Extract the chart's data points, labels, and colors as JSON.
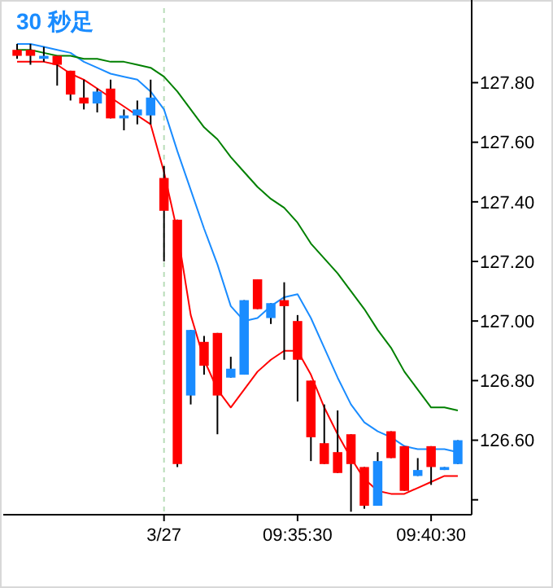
{
  "chart_data": {
    "type": "candlestick",
    "title": "30 秒足",
    "categories": [
      null,
      null,
      null,
      null,
      null,
      null,
      null,
      null,
      null,
      null,
      null,
      "3/27",
      null,
      null,
      null,
      null,
      null,
      null,
      null,
      null,
      null,
      "09:35:30",
      null,
      null,
      null,
      null,
      null,
      null,
      null,
      null,
      null,
      "09:40:30",
      null,
      null
    ],
    "ohlc": [
      [
        127.91,
        127.93,
        127.88,
        127.89
      ],
      [
        127.91,
        127.93,
        127.86,
        127.89
      ],
      [
        127.88,
        127.92,
        127.87,
        127.89
      ],
      [
        127.89,
        127.89,
        127.79,
        127.86
      ],
      [
        127.84,
        127.84,
        127.74,
        127.76
      ],
      [
        127.75,
        127.81,
        127.71,
        127.73
      ],
      [
        127.73,
        127.78,
        127.7,
        127.77
      ],
      [
        127.78,
        127.81,
        127.68,
        127.68
      ],
      [
        127.68,
        127.71,
        127.64,
        127.69
      ],
      [
        127.69,
        127.74,
        127.66,
        127.71
      ],
      [
        127.69,
        127.81,
        127.66,
        127.75
      ],
      [
        127.48,
        127.52,
        127.2,
        127.37
      ],
      [
        127.34,
        127.34,
        126.51,
        126.52
      ],
      [
        126.75,
        126.97,
        126.72,
        126.97
      ],
      [
        126.93,
        126.95,
        126.82,
        126.85
      ],
      [
        126.96,
        126.96,
        126.62,
        126.75
      ],
      [
        126.81,
        126.88,
        126.81,
        126.84
      ],
      [
        126.82,
        127.07,
        126.82,
        127.07
      ],
      [
        127.14,
        127.14,
        127.04,
        127.04
      ],
      [
        127.01,
        127.06,
        126.99,
        127.06
      ],
      [
        127.07,
        127.13,
        126.87,
        127.05
      ],
      [
        127.0,
        127.02,
        126.73,
        126.87
      ],
      [
        126.8,
        126.8,
        126.53,
        126.61
      ],
      [
        126.59,
        126.72,
        126.52,
        126.52
      ],
      [
        126.56,
        126.7,
        126.49,
        126.49
      ],
      [
        126.62,
        126.62,
        126.36,
        126.52
      ],
      [
        126.51,
        126.51,
        126.37,
        126.38
      ],
      [
        126.38,
        126.56,
        126.38,
        126.53
      ],
      [
        126.63,
        126.63,
        126.54,
        126.54
      ],
      [
        126.58,
        126.58,
        126.43,
        126.43
      ],
      [
        126.48,
        126.54,
        126.48,
        126.5
      ],
      [
        126.58,
        126.58,
        126.45,
        126.51
      ],
      [
        126.5,
        126.51,
        126.5,
        126.51
      ],
      [
        126.52,
        126.6,
        126.52,
        126.6
      ]
    ],
    "colors": [
      "#ff0000",
      "#ff0000",
      "#1a8cff",
      "#ff0000",
      "#ff0000",
      "#ff0000",
      "#1a8cff",
      "#ff0000",
      "#1a8cff",
      "#1a8cff",
      "#1a8cff",
      "#ff0000",
      "#ff0000",
      "#1a8cff",
      "#ff0000",
      "#ff0000",
      "#1a8cff",
      "#1a8cff",
      "#ff0000",
      "#1a8cff",
      "#ff0000",
      "#ff0000",
      "#ff0000",
      "#ff0000",
      "#ff0000",
      "#ff0000",
      "#ff0000",
      "#1a8cff",
      "#ff0000",
      "#ff0000",
      "#1a8cff",
      "#ff0000",
      "#1a8cff",
      "#1a8cff"
    ],
    "series": [
      {
        "type": "line",
        "color": "#ff0000",
        "values": [
          127.87,
          127.87,
          127.87,
          127.86,
          127.83,
          127.81,
          127.78,
          127.75,
          127.72,
          127.69,
          127.66,
          127.5,
          127.3,
          127.02,
          126.87,
          126.77,
          126.71,
          126.77,
          126.83,
          126.87,
          126.9,
          126.9,
          126.82,
          126.71,
          126.62,
          126.54,
          126.47,
          126.43,
          126.42,
          126.42,
          126.44,
          126.46,
          126.48,
          126.48
        ]
      },
      {
        "type": "line",
        "color": "#1a8cff",
        "values": [
          127.93,
          127.93,
          127.92,
          127.91,
          127.9,
          127.87,
          127.85,
          127.83,
          127.82,
          127.81,
          127.77,
          127.71,
          127.57,
          127.44,
          127.31,
          127.19,
          127.05,
          127.0,
          127.01,
          127.05,
          127.08,
          127.09,
          127.01,
          126.91,
          126.81,
          126.72,
          126.66,
          126.63,
          126.61,
          126.58,
          126.57,
          126.57,
          126.57,
          126.56
        ]
      },
      {
        "type": "line",
        "color": "#008000",
        "values": [
          127.91,
          127.91,
          127.9,
          127.89,
          127.89,
          127.88,
          127.88,
          127.87,
          127.87,
          127.86,
          127.85,
          127.82,
          127.77,
          127.71,
          127.65,
          127.61,
          127.55,
          127.5,
          127.45,
          127.41,
          127.38,
          127.33,
          127.26,
          127.21,
          127.16,
          127.1,
          127.04,
          126.97,
          126.91,
          126.83,
          126.77,
          126.71,
          126.71,
          126.7
        ]
      }
    ],
    "ref_lines": [
      {
        "axis": "x",
        "value": "3/27",
        "color": "#b8dcb8",
        "line_style": "dashed"
      }
    ],
    "ylim": [
      126.35,
      128.05
    ],
    "yticks": [
      {
        "value": 126.4,
        "label": null
      },
      {
        "value": 126.6,
        "label": "126.60"
      },
      {
        "value": 126.8,
        "label": "126.80"
      },
      {
        "value": 127.0,
        "label": "127.00"
      },
      {
        "value": 127.2,
        "label": "127.20"
      },
      {
        "value": 127.4,
        "label": "127.40"
      },
      {
        "value": 127.6,
        "label": "127.60"
      },
      {
        "value": 127.8,
        "label": "127.80"
      }
    ]
  }
}
